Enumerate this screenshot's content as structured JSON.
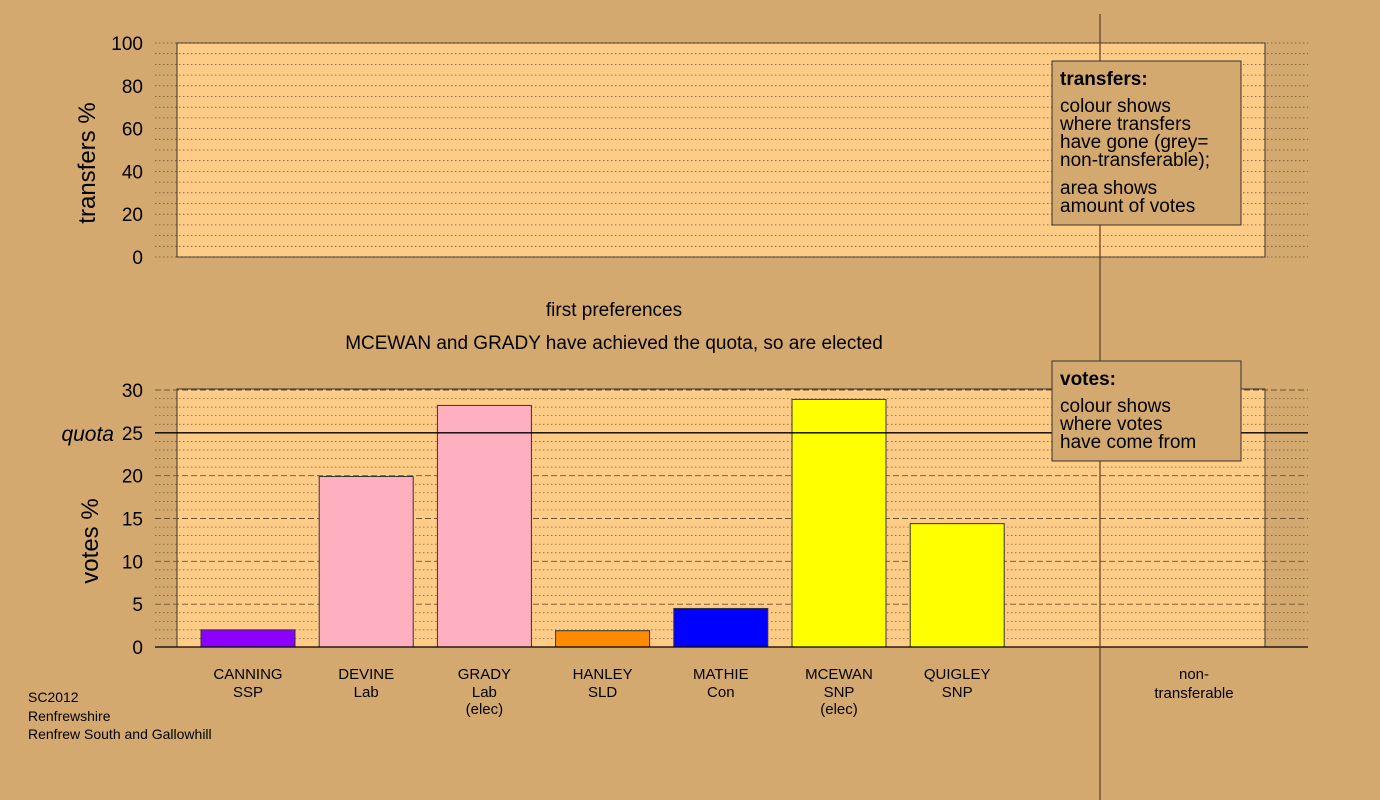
{
  "chart_data": [
    {
      "type": "bar",
      "ylabel": "transfers %",
      "ylim": [
        0,
        100
      ],
      "yticks": [
        0,
        20,
        40,
        60,
        80,
        100
      ],
      "grid": "dotted",
      "legend": {
        "title": "transfers:",
        "lines": [
          "colour shows",
          "where transfers",
          "have gone (grey=",
          "non-transferable);"
        ],
        "lines2": [
          "area shows",
          "amount of votes"
        ]
      },
      "values": []
    },
    {
      "type": "bar",
      "ylabel": "votes %",
      "ylim": [
        0,
        30
      ],
      "yticks": [
        0,
        5,
        10,
        15,
        20,
        25,
        30
      ],
      "grid": "dotted",
      "quota": {
        "value": 25,
        "label": "quota"
      },
      "stage_title": "first preferences",
      "stage_subtitle": "MCEWAN and GRADY have achieved the quota, so are elected",
      "legend": {
        "title": "votes:",
        "lines": [
          "colour shows",
          "where votes",
          "have come from"
        ]
      },
      "categories": [
        {
          "name": "CANNING",
          "party": "SSP",
          "note": "",
          "value": 2.0,
          "color": "#8b00ff"
        },
        {
          "name": "DEVINE",
          "party": "Lab",
          "note": "",
          "value": 19.9,
          "color": "#ffb0c0"
        },
        {
          "name": "GRADY",
          "party": "Lab",
          "note": "(elec)",
          "value": 28.2,
          "color": "#ffb0c0"
        },
        {
          "name": "HANLEY",
          "party": "SLD",
          "note": "",
          "value": 1.9,
          "color": "#ff8c00"
        },
        {
          "name": "MATHIE",
          "party": "Con",
          "note": "",
          "value": 4.5,
          "color": "#0000ff"
        },
        {
          "name": "MCEWAN",
          "party": "SNP",
          "note": "(elec)",
          "value": 28.9,
          "color": "#ffff00"
        },
        {
          "name": "QUIGLEY",
          "party": "SNP",
          "note": "",
          "value": 14.4,
          "color": "#ffff00"
        }
      ],
      "nontransferable_label": [
        "non-",
        "transferable"
      ]
    }
  ],
  "footer": {
    "lines": [
      "SC2012",
      "Renfrewshire",
      "Renfrew South and Gallowhill"
    ]
  },
  "colors": {
    "background": "#d4a970",
    "plot_fill": "#ffcc88"
  }
}
